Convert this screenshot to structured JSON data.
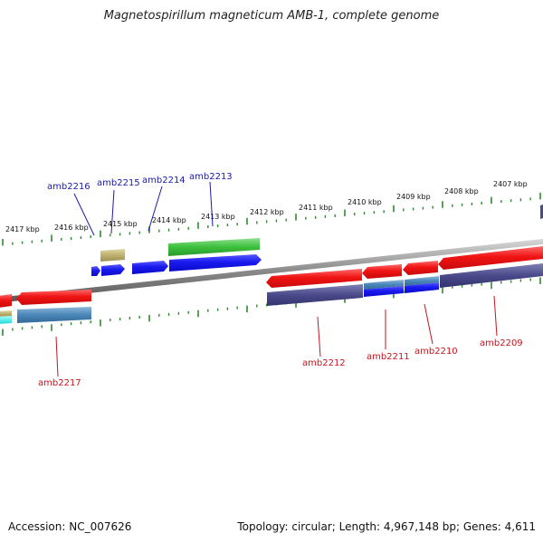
{
  "title": "Magnetospirillum magneticum AMB-1, complete genome",
  "footer": {
    "accession": "Accession: NC_007626",
    "topology": "Topology: circular; Length: 4,967,148 bp; Genes: 4,611"
  },
  "kbp_labels": [
    "2417 kbp",
    "2416 kbp",
    "2415 kbp",
    "2414 kbp",
    "2413 kbp",
    "2412 kbp",
    "2411 kbp",
    "2410 kbp",
    "2409 kbp",
    "2408 kbp",
    "2407 kbp"
  ],
  "gene_labels": {
    "top": [
      "amb2216",
      "amb2215",
      "amb2214",
      "amb2213"
    ],
    "bottom": [
      "amb2217",
      "amb2212",
      "amb2211",
      "amb2210",
      "amb2209"
    ]
  },
  "colors": {
    "forward_cds": "#1a1af0",
    "reverse_cds": "#f01414",
    "forward_label": "#1a1aa8",
    "reverse_label": "#c8141e",
    "tick": "#2f8a2f",
    "backbone": "#8a8a8a"
  }
}
